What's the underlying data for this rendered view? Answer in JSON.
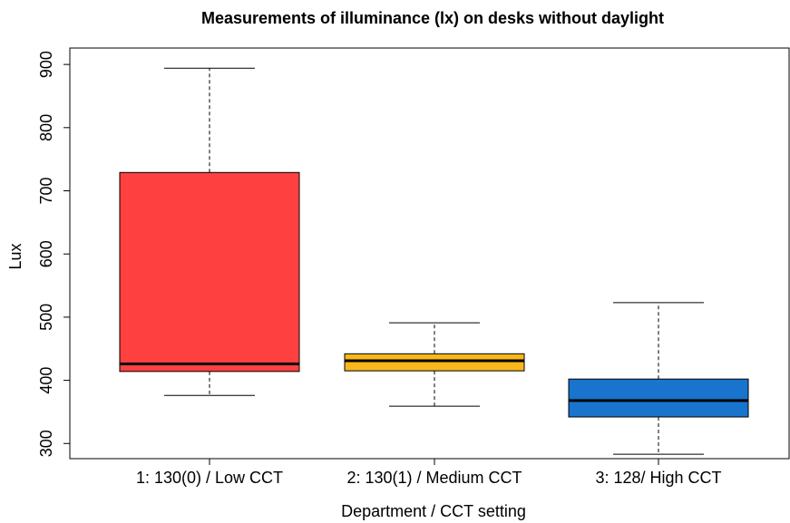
{
  "chart_data": {
    "type": "box",
    "title": "Measurements of illuminance (lx) on desks without daylight",
    "x_label": "Department / CCT setting",
    "y_label": "Lux",
    "categories": [
      "1: 130(0) / Low CCT",
      "2: 130(1) / Medium CCT",
      "3: 128/ High CCT"
    ],
    "colors": [
      "#ff4040",
      "#f8b81c",
      "#1874cd"
    ],
    "min": [
      376,
      359,
      283
    ],
    "q1": [
      414,
      415,
      342
    ],
    "median": [
      426,
      431,
      368
    ],
    "q3": [
      729,
      442,
      402
    ],
    "max": [
      894,
      491,
      523
    ],
    "ylim": [
      276,
      926
    ],
    "yticks": [
      300,
      400,
      500,
      600,
      700,
      800,
      900
    ]
  }
}
